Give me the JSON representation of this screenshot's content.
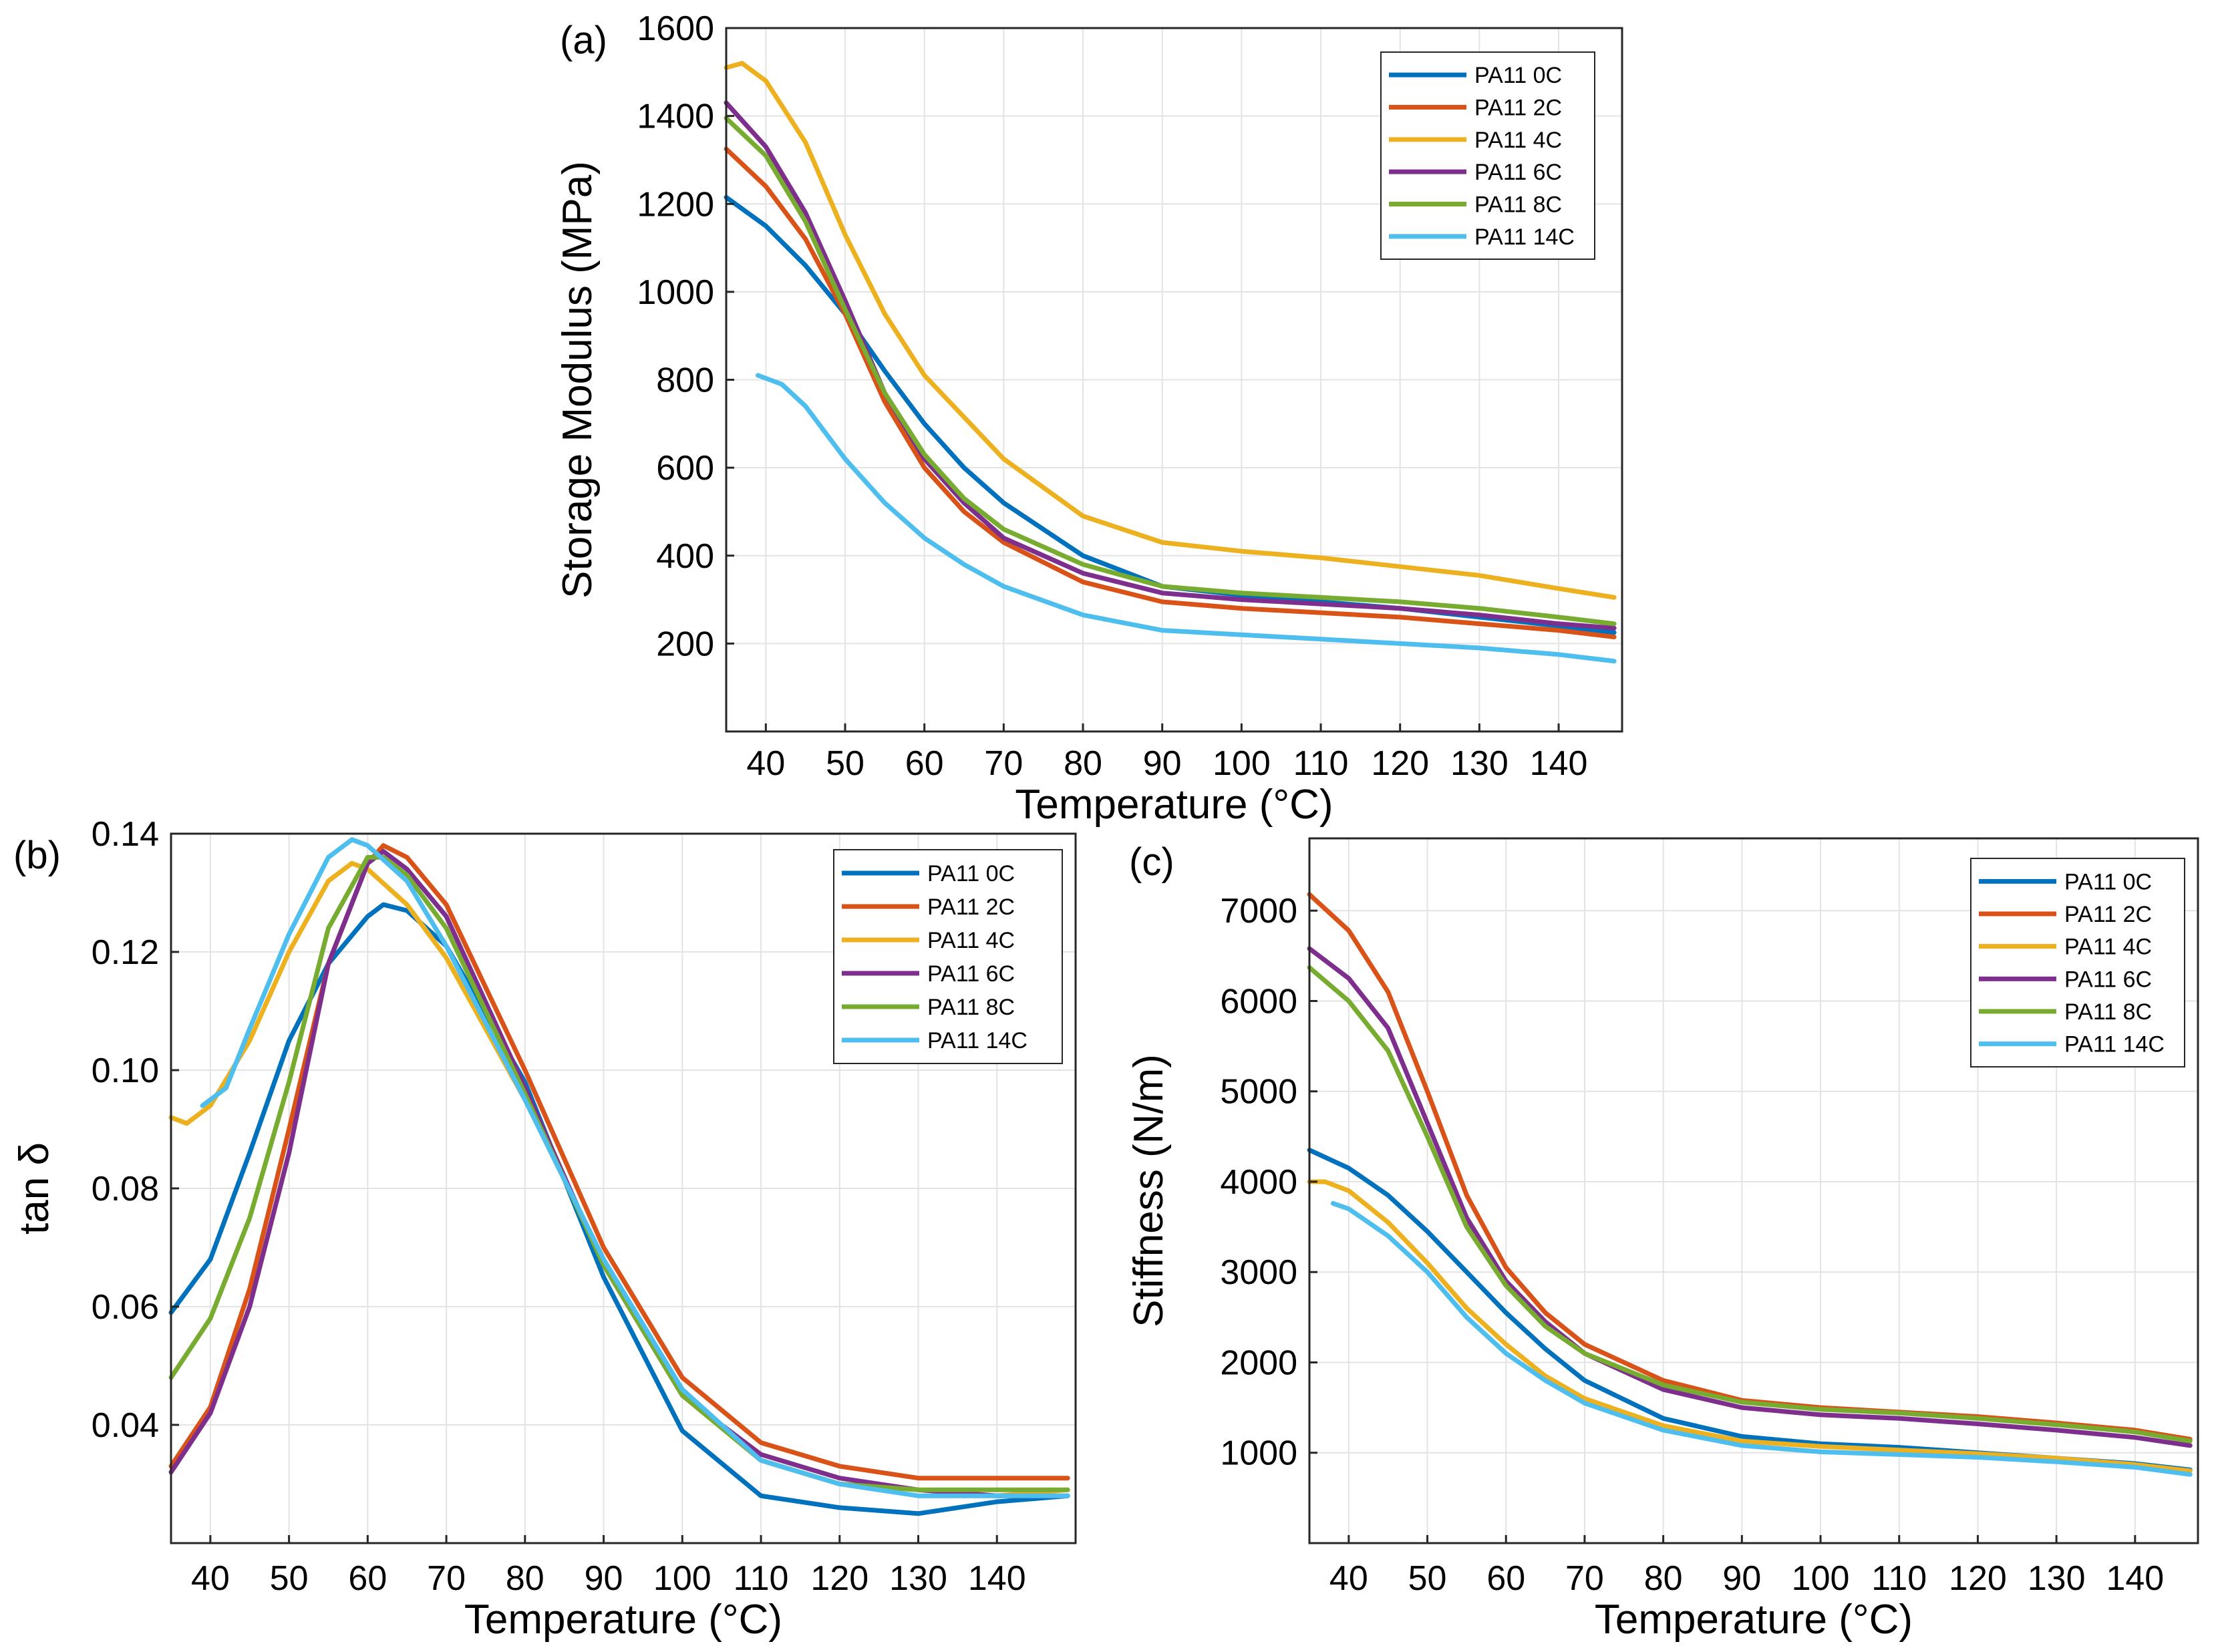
{
  "figure": {
    "panels": {
      "a": {
        "label": "(a)"
      },
      "b": {
        "label": "(b)"
      },
      "c": {
        "label": "(c)"
      }
    }
  },
  "chart_data": [
    {
      "id": "a",
      "type": "line",
      "panel_label": "(a)",
      "title": "",
      "xlabel": "Temperature  (°C)",
      "ylabel": "Storage Modulus (MPa)",
      "xlim": [
        35,
        148
      ],
      "ylim": [
        0,
        1600
      ],
      "xticks": [
        40,
        50,
        60,
        70,
        80,
        90,
        100,
        110,
        120,
        130,
        140
      ],
      "yticks": [
        200,
        400,
        600,
        800,
        1000,
        1200,
        1400,
        1600
      ],
      "grid": true,
      "legend_position": "top-right",
      "series": [
        {
          "name": "PA11 0C",
          "color": "#0072BD",
          "x": [
            35,
            40,
            45,
            50,
            55,
            60,
            65,
            70,
            80,
            90,
            100,
            110,
            120,
            130,
            140,
            147
          ],
          "y": [
            1215,
            1150,
            1060,
            950,
            820,
            700,
            600,
            520,
            400,
            330,
            310,
            295,
            280,
            260,
            240,
            225
          ]
        },
        {
          "name": "PA11 2C",
          "color": "#D95319",
          "x": [
            35,
            40,
            45,
            50,
            55,
            60,
            65,
            70,
            80,
            90,
            100,
            110,
            120,
            130,
            140,
            147
          ],
          "y": [
            1325,
            1240,
            1120,
            950,
            750,
            600,
            500,
            430,
            340,
            295,
            280,
            270,
            260,
            245,
            230,
            215
          ]
        },
        {
          "name": "PA11 4C",
          "color": "#EDB120",
          "x": [
            35,
            37,
            40,
            45,
            50,
            55,
            60,
            70,
            80,
            90,
            100,
            110,
            120,
            130,
            140,
            147
          ],
          "y": [
            1510,
            1520,
            1480,
            1340,
            1130,
            950,
            810,
            620,
            490,
            430,
            410,
            395,
            375,
            355,
            325,
            305
          ]
        },
        {
          "name": "PA11 6C",
          "color": "#7E2F8E",
          "x": [
            35,
            40,
            45,
            50,
            55,
            60,
            65,
            70,
            80,
            90,
            100,
            110,
            120,
            130,
            140,
            147
          ],
          "y": [
            1430,
            1330,
            1180,
            980,
            770,
            620,
            520,
            440,
            360,
            315,
            300,
            290,
            280,
            265,
            245,
            235
          ]
        },
        {
          "name": "PA11 8C",
          "color": "#77AC30",
          "x": [
            35,
            40,
            45,
            50,
            55,
            60,
            65,
            70,
            80,
            90,
            100,
            110,
            120,
            130,
            140,
            147
          ],
          "y": [
            1395,
            1310,
            1160,
            960,
            770,
            630,
            530,
            460,
            380,
            330,
            315,
            305,
            295,
            280,
            260,
            245
          ]
        },
        {
          "name": "PA11 14C",
          "color": "#4DBEEE",
          "x": [
            39,
            42,
            45,
            50,
            55,
            60,
            65,
            70,
            80,
            90,
            100,
            110,
            120,
            130,
            140,
            147
          ],
          "y": [
            810,
            790,
            740,
            620,
            520,
            440,
            380,
            330,
            265,
            230,
            220,
            210,
            200,
            190,
            175,
            160
          ]
        }
      ]
    },
    {
      "id": "b",
      "type": "line",
      "panel_label": "(b)",
      "title": "",
      "xlabel": "Temperature  (°C)",
      "ylabel": "tan δ",
      "xlim": [
        35,
        150
      ],
      "ylim": [
        0.02,
        0.14
      ],
      "xticks": [
        40,
        50,
        60,
        70,
        80,
        90,
        100,
        110,
        120,
        130,
        140
      ],
      "yticks": [
        0.04,
        0.06,
        0.08,
        0.1,
        0.12,
        0.14
      ],
      "ytick_labels": [
        "0.04",
        "0.06",
        "0.08",
        "0.10",
        "0.12",
        "0.14"
      ],
      "grid": true,
      "legend_position": "top-right",
      "series": [
        {
          "name": "PA11 0C",
          "color": "#0072BD",
          "x": [
            35,
            40,
            45,
            50,
            55,
            60,
            62,
            65,
            70,
            80,
            90,
            100,
            110,
            120,
            130,
            140,
            149
          ],
          "y": [
            0.059,
            0.068,
            0.086,
            0.105,
            0.118,
            0.126,
            0.128,
            0.127,
            0.121,
            0.098,
            0.065,
            0.039,
            0.028,
            0.026,
            0.025,
            0.027,
            0.028
          ]
        },
        {
          "name": "PA11 2C",
          "color": "#D95319",
          "x": [
            35,
            40,
            45,
            50,
            55,
            60,
            62,
            65,
            70,
            80,
            90,
            100,
            110,
            120,
            130,
            140,
            149
          ],
          "y": [
            0.033,
            0.043,
            0.063,
            0.09,
            0.118,
            0.135,
            0.138,
            0.136,
            0.128,
            0.1,
            0.07,
            0.048,
            0.037,
            0.033,
            0.031,
            0.031,
            0.031
          ]
        },
        {
          "name": "PA11 4C",
          "color": "#EDB120",
          "x": [
            35,
            37,
            40,
            45,
            50,
            55,
            58,
            60,
            65,
            70,
            80,
            90,
            100,
            110,
            120,
            130,
            140,
            149
          ],
          "y": [
            0.092,
            0.091,
            0.094,
            0.105,
            0.12,
            0.132,
            0.135,
            0.134,
            0.128,
            0.119,
            0.095,
            0.068,
            0.045,
            0.034,
            0.03,
            0.029,
            0.028,
            0.029
          ]
        },
        {
          "name": "PA11 6C",
          "color": "#7E2F8E",
          "x": [
            35,
            40,
            45,
            50,
            55,
            60,
            62,
            65,
            70,
            80,
            90,
            100,
            110,
            120,
            130,
            140,
            149
          ],
          "y": [
            0.032,
            0.042,
            0.06,
            0.086,
            0.118,
            0.135,
            0.137,
            0.134,
            0.126,
            0.097,
            0.067,
            0.045,
            0.035,
            0.031,
            0.029,
            0.028,
            0.028
          ]
        },
        {
          "name": "PA11 8C",
          "color": "#77AC30",
          "x": [
            35,
            40,
            45,
            50,
            55,
            60,
            62,
            65,
            70,
            80,
            90,
            100,
            110,
            120,
            130,
            140,
            149
          ],
          "y": [
            0.048,
            0.058,
            0.075,
            0.098,
            0.124,
            0.136,
            0.136,
            0.133,
            0.124,
            0.096,
            0.067,
            0.045,
            0.034,
            0.03,
            0.029,
            0.029,
            0.029
          ]
        },
        {
          "name": "PA11 14C",
          "color": "#4DBEEE",
          "x": [
            39,
            42,
            45,
            50,
            55,
            58,
            60,
            65,
            70,
            80,
            90,
            100,
            110,
            120,
            130,
            140,
            149
          ],
          "y": [
            0.094,
            0.097,
            0.107,
            0.123,
            0.136,
            0.139,
            0.138,
            0.132,
            0.121,
            0.095,
            0.068,
            0.046,
            0.034,
            0.03,
            0.028,
            0.028,
            0.028
          ]
        }
      ]
    },
    {
      "id": "c",
      "type": "line",
      "panel_label": "(c)",
      "title": "",
      "xlabel": "Temperature  (°C)",
      "ylabel": "Stiffness (N/m)",
      "xlim": [
        35,
        148
      ],
      "ylim": [
        0,
        7800
      ],
      "xticks": [
        40,
        50,
        60,
        70,
        80,
        90,
        100,
        110,
        120,
        130,
        140
      ],
      "yticks": [
        1000,
        2000,
        3000,
        4000,
        5000,
        6000,
        7000
      ],
      "grid": true,
      "legend_position": "top-right",
      "series": [
        {
          "name": "PA11 0C",
          "color": "#0072BD",
          "x": [
            35,
            40,
            45,
            50,
            55,
            60,
            65,
            70,
            80,
            90,
            100,
            110,
            120,
            130,
            140,
            147
          ],
          "y": [
            4350,
            4150,
            3850,
            3450,
            3000,
            2550,
            2150,
            1800,
            1380,
            1180,
            1100,
            1060,
            1000,
            940,
            880,
            810
          ]
        },
        {
          "name": "PA11 2C",
          "color": "#D95319",
          "x": [
            35,
            40,
            45,
            50,
            55,
            60,
            65,
            70,
            80,
            90,
            100,
            110,
            120,
            130,
            140,
            147
          ],
          "y": [
            7180,
            6780,
            6100,
            5000,
            3850,
            3050,
            2550,
            2200,
            1800,
            1580,
            1500,
            1450,
            1400,
            1330,
            1250,
            1150
          ]
        },
        {
          "name": "PA11 4C",
          "color": "#EDB120",
          "x": [
            35,
            37,
            40,
            45,
            50,
            55,
            60,
            65,
            70,
            80,
            90,
            100,
            110,
            120,
            130,
            140,
            147
          ],
          "y": [
            4000,
            4000,
            3900,
            3550,
            3100,
            2600,
            2200,
            1850,
            1600,
            1300,
            1130,
            1070,
            1030,
            990,
            940,
            870,
            800
          ]
        },
        {
          "name": "PA11 6C",
          "color": "#7E2F8E",
          "x": [
            35,
            40,
            45,
            50,
            55,
            60,
            65,
            70,
            80,
            90,
            100,
            110,
            120,
            130,
            140,
            147
          ],
          "y": [
            6580,
            6250,
            5700,
            4650,
            3600,
            2900,
            2450,
            2100,
            1700,
            1500,
            1420,
            1380,
            1320,
            1250,
            1170,
            1080
          ]
        },
        {
          "name": "PA11 8C",
          "color": "#77AC30",
          "x": [
            35,
            40,
            45,
            50,
            55,
            60,
            65,
            70,
            80,
            90,
            100,
            110,
            120,
            130,
            140,
            147
          ],
          "y": [
            6370,
            6000,
            5450,
            4500,
            3500,
            2850,
            2400,
            2100,
            1750,
            1560,
            1480,
            1440,
            1380,
            1310,
            1230,
            1130
          ]
        },
        {
          "name": "PA11 14C",
          "color": "#4DBEEE",
          "x": [
            38,
            40,
            45,
            50,
            55,
            60,
            65,
            70,
            80,
            90,
            100,
            110,
            120,
            130,
            140,
            147
          ],
          "y": [
            3760,
            3700,
            3400,
            3000,
            2500,
            2100,
            1800,
            1550,
            1250,
            1080,
            1010,
            980,
            950,
            900,
            840,
            760
          ]
        }
      ]
    }
  ]
}
